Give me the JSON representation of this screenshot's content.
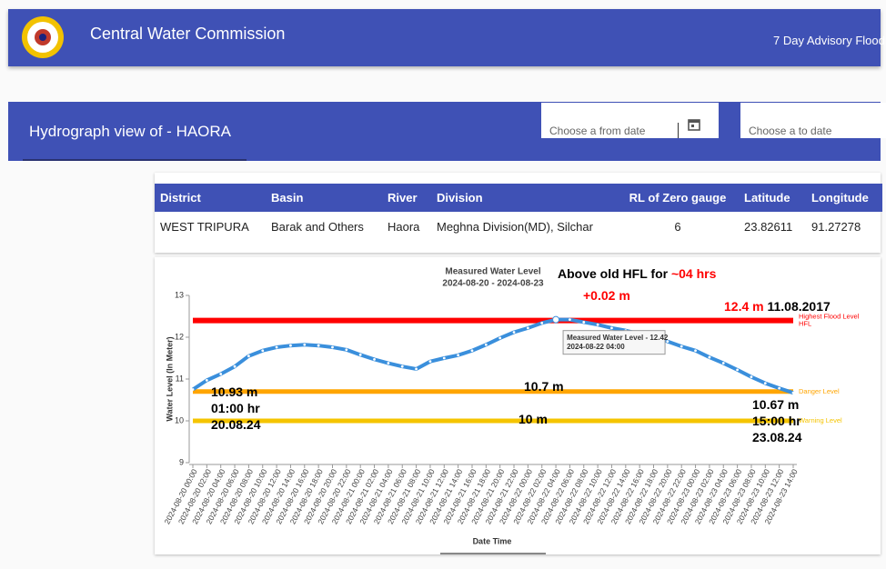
{
  "header": {
    "title": "Central Water Commission",
    "nav_link": "7 Day Advisory Flood"
  },
  "toolbar": {
    "title": "Hydrograph view of - HAORA",
    "from_placeholder": "Choose a from date",
    "to_placeholder": "Choose a to date"
  },
  "table": {
    "columns": [
      "District",
      "Basin",
      "River",
      "Division",
      "RL of Zero gauge",
      "Latitude",
      "Longitude"
    ],
    "rows": [
      [
        "WEST TRIPURA",
        "Barak and Others",
        "Haora",
        "Meghna Division(MD), Silchar",
        6,
        23.82611,
        91.27278
      ]
    ]
  },
  "chart_data": {
    "type": "line",
    "title": "Measured Water Level",
    "subtitle": "2024-08-20 - 2024-08-23",
    "y_label": "Water Level (In Meter)",
    "x_label": "Date Time",
    "categories": [
      "2024-08-20 00:00",
      "2024-08-20 02:00",
      "2024-08-20 04:00",
      "2024-08-20 06:00",
      "2024-08-20 08:00",
      "2024-08-20 10:00",
      "2024-08-20 12:00",
      "2024-08-20 14:00",
      "2024-08-20 16:00",
      "2024-08-20 18:00",
      "2024-08-20 20:00",
      "2024-08-20 22:00",
      "2024-08-21 00:00",
      "2024-08-21 02:00",
      "2024-08-21 04:00",
      "2024-08-21 06:00",
      "2024-08-21 08:00",
      "2024-08-21 10:00",
      "2024-08-21 12:00",
      "2024-08-21 14:00",
      "2024-08-21 16:00",
      "2024-08-21 18:00",
      "2024-08-21 20:00",
      "2024-08-21 22:00",
      "2024-08-22 00:00",
      "2024-08-22 02:00",
      "2024-08-22 04:00",
      "2024-08-22 06:00",
      "2024-08-22 08:00",
      "2024-08-22 10:00",
      "2024-08-22 12:00",
      "2024-08-22 14:00",
      "2024-08-22 16:00",
      "2024-08-22 18:00",
      "2024-08-22 20:00",
      "2024-08-22 22:00",
      "2024-08-23 00:00",
      "2024-08-23 02:00",
      "2024-08-23 04:00",
      "2024-08-23 06:00",
      "2024-08-23 08:00",
      "2024-08-23 10:00",
      "2024-08-23 12:00",
      "2024-08-23 14:00"
    ],
    "series": [
      {
        "name": "Measured Water Level",
        "color": "#3a8fdc",
        "values": [
          10.75,
          10.97,
          11.12,
          11.3,
          11.55,
          11.68,
          11.76,
          11.8,
          11.82,
          11.8,
          11.76,
          11.7,
          11.58,
          11.47,
          11.38,
          11.3,
          11.24,
          11.42,
          11.5,
          11.57,
          11.68,
          11.82,
          11.98,
          12.12,
          12.22,
          12.34,
          12.42,
          12.42,
          12.36,
          12.3,
          12.22,
          12.16,
          12.08,
          11.98,
          11.9,
          11.78,
          11.68,
          11.52,
          11.38,
          11.22,
          11.05,
          10.9,
          10.78,
          10.67
        ]
      }
    ],
    "ylim": [
      9,
      13
    ],
    "yticks": [
      9,
      10,
      11,
      12,
      13
    ],
    "reference_lines": [
      {
        "value": 12.4,
        "color": "#ff0000",
        "labels": [
          "Highest Flood Level",
          "HFL"
        ]
      },
      {
        "value": 10.7,
        "color": "#ffa500",
        "labels": [
          "Danger Level"
        ]
      },
      {
        "value": 10,
        "color": "#f5c400",
        "labels": [
          "Warning Level"
        ]
      }
    ],
    "tooltip": {
      "index": 26,
      "lines": [
        "Measured Water Level - 12.42",
        "2024-08-22 04:00"
      ]
    },
    "annotations": [
      {
        "parts": [
          {
            "text": "Above old HFL for ",
            "color": "#000000"
          },
          {
            "text": "~04 hrs",
            "color": "#ff0000"
          }
        ]
      },
      {
        "parts": [
          {
            "text": "+0.02 m",
            "color": "#ff0000"
          }
        ]
      },
      {
        "parts": [
          {
            "text": "12.4 m",
            "color": "#ff0000"
          },
          {
            "text": " 11.08.2017",
            "color": "#000000"
          }
        ]
      },
      {
        "parts": [
          {
            "text": "10.93 m",
            "color": "#000000"
          }
        ]
      },
      {
        "parts": [
          {
            "text": "01:00 hr",
            "color": "#000000"
          }
        ]
      },
      {
        "parts": [
          {
            "text": "20.08.24",
            "color": "#000000"
          }
        ]
      },
      {
        "parts": [
          {
            "text": "10.7 m",
            "color": "#000000"
          }
        ]
      },
      {
        "parts": [
          {
            "text": "10 m",
            "color": "#000000"
          }
        ]
      },
      {
        "parts": [
          {
            "text": "10.67 m",
            "color": "#000000"
          }
        ]
      },
      {
        "parts": [
          {
            "text": "15:00 hr",
            "color": "#000000"
          }
        ]
      },
      {
        "parts": [
          {
            "text": "23.08.24",
            "color": "#000000"
          }
        ]
      }
    ]
  }
}
